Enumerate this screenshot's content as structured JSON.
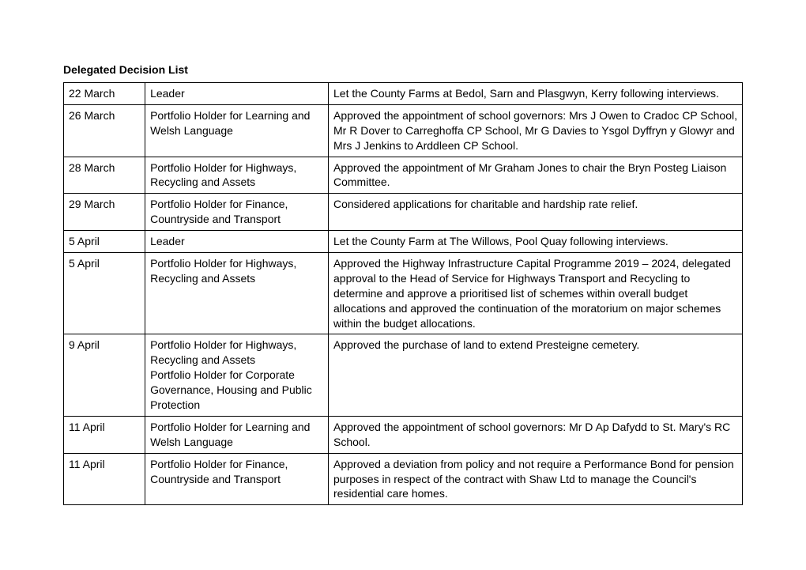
{
  "title": "Delegated Decision List",
  "rows": [
    {
      "date": "22 March",
      "holder": "Leader",
      "decision": "Let the County Farms at Bedol, Sarn and Plasgwyn, Kerry following interviews."
    },
    {
      "date": "26 March",
      "holder": "Portfolio Holder for Learning and Welsh Language",
      "decision": "Approved the appointment of school governors: Mrs J Owen to Cradoc CP School, Mr R Dover to Carreghoffa CP School, Mr G Davies to Ysgol Dyffryn y Glowyr and Mrs J Jenkins to Arddleen CP School."
    },
    {
      "date": "28 March",
      "holder": "Portfolio Holder for Highways, Recycling and Assets",
      "decision": "Approved the appointment of Mr Graham Jones to chair the Bryn Posteg Liaison Committee."
    },
    {
      "date": "29 March",
      "holder": "Portfolio Holder for Finance, Countryside and Transport",
      "decision": "Considered applications for charitable and hardship rate relief."
    },
    {
      "date": "5 April",
      "holder": "Leader",
      "decision": "Let the County Farm at The Willows, Pool Quay following interviews.\n"
    },
    {
      "date": "5 April",
      "holder": "Portfolio Holder for Highways, Recycling and Assets",
      "decision": "Approved the Highway Infrastructure Capital Programme 2019 – 2024, delegated approval to the Head of Service for Highways Transport and Recycling to determine and approve a prioritised list of schemes within overall budget allocations and approved the continuation of the moratorium on major schemes within the budget allocations."
    },
    {
      "date": "9 April",
      "holder": "Portfolio Holder for Highways, Recycling and Assets\nPortfolio Holder for Corporate Governance, Housing and Public Protection",
      "decision": "Approved the purchase of land to extend Presteigne cemetery."
    },
    {
      "date": "11 April",
      "holder": "Portfolio Holder for Learning and Welsh Language",
      "decision": "Approved the appointment of school governors: Mr D Ap Dafydd to St. Mary's RC School."
    },
    {
      "date": "11 April",
      "holder": "Portfolio Holder for Finance, Countryside and Transport",
      "decision": "Approved a deviation from policy and not require a Performance Bond for pension purposes in respect of the contract with Shaw Ltd to manage the Council's residential care homes.\n"
    }
  ]
}
